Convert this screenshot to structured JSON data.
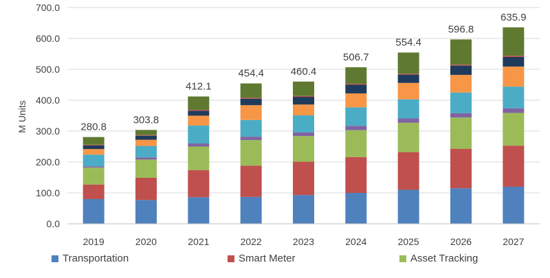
{
  "chart_data": {
    "type": "bar",
    "stacked": true,
    "ylabel": "M Units",
    "ylim": [
      0,
      700
    ],
    "yticks": [
      "0.0",
      "100.0",
      "200.0",
      "300.0",
      "400.0",
      "500.0",
      "600.0",
      "700.0"
    ],
    "grid": true,
    "legend_position": "bottom",
    "categories": [
      "2019",
      "2020",
      "2021",
      "2022",
      "2023",
      "2024",
      "2025",
      "2026",
      "2027"
    ],
    "totals": [
      "280.8",
      "303.8",
      "412.1",
      "454.4",
      "460.4",
      "506.7",
      "554.4",
      "596.8",
      "635.9"
    ],
    "series": [
      {
        "name": "Transportation",
        "color": "#4f81bd",
        "values": [
          80,
          77,
          86,
          87,
          93,
          100,
          110,
          115,
          120
        ]
      },
      {
        "name": "Smart Meter",
        "color": "#c0504d",
        "values": [
          47,
          72,
          88,
          101,
          108,
          116,
          122,
          128,
          133
        ]
      },
      {
        "name": "Asset Tracking",
        "color": "#9bbb59",
        "values": [
          55,
          59,
          76,
          83,
          83,
          87,
          95,
          101,
          106
        ]
      },
      {
        "name": "",
        "color": "#8064a2",
        "values": [
          4,
          7,
          10,
          11,
          12,
          14,
          14,
          14,
          15
        ]
      },
      {
        "name": "",
        "color": "#4bacc6",
        "values": [
          38,
          37,
          58,
          54,
          55,
          60,
          62,
          67,
          70
        ]
      },
      {
        "name": "",
        "color": "#f79646",
        "values": [
          18,
          20,
          32,
          48,
          35,
          45,
          53,
          57,
          65
        ]
      },
      {
        "name": "",
        "color": "#1f3b5c",
        "values": [
          12,
          13,
          16,
          21,
          25,
          28,
          27,
          30,
          31
        ]
      },
      {
        "name": "",
        "color": "#c0504d",
        "values": [
          2,
          2,
          3,
          3,
          3,
          3,
          3,
          3,
          4
        ]
      },
      {
        "name": "",
        "color": "#5f7a30",
        "values": [
          24.8,
          16.8,
          43.1,
          46.4,
          46.4,
          53.7,
          68.4,
          81.8,
          91.9
        ]
      }
    ]
  }
}
